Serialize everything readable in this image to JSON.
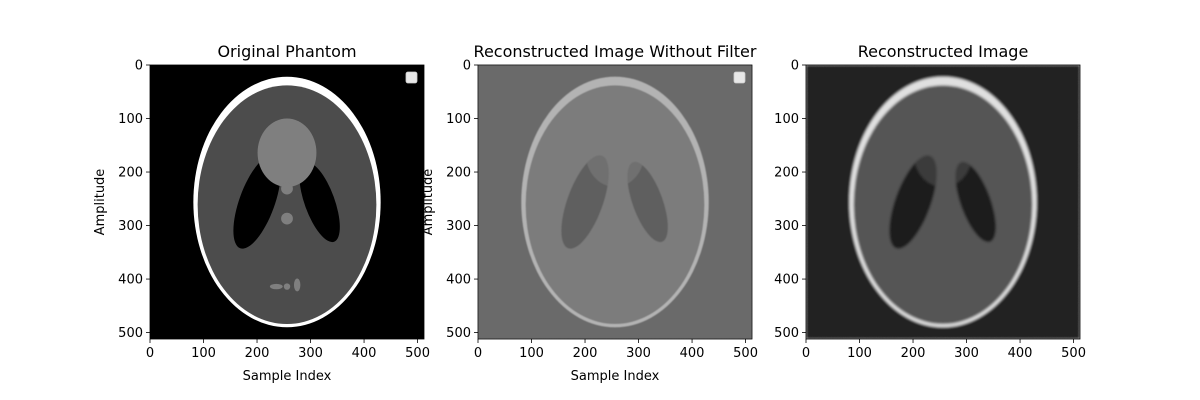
{
  "chart_data": [
    {
      "type": "heatmap",
      "title": "Original Phantom",
      "xlabel": "Sample Index",
      "ylabel": "Amplitude",
      "image_size": [
        512,
        512
      ],
      "xlim": [
        0,
        512
      ],
      "ylim": [
        512,
        0
      ],
      "xticks": [
        0,
        100,
        200,
        300,
        400,
        500
      ],
      "yticks": [
        0,
        100,
        200,
        300,
        400,
        500
      ],
      "colormap": "gray",
      "legend": "top-right, empty"
    },
    {
      "type": "heatmap",
      "title": "Reconstructed Image Without Filter",
      "xlabel": "Sample Index",
      "ylabel": "Amplitude",
      "image_size": [
        512,
        512
      ],
      "xlim": [
        0,
        512
      ],
      "ylim": [
        512,
        0
      ],
      "xticks": [
        0,
        100,
        200,
        300,
        400,
        500
      ],
      "yticks": [
        0,
        100,
        200,
        300,
        400,
        500
      ],
      "colormap": "gray",
      "legend": "top-right, empty"
    },
    {
      "type": "heatmap",
      "title": "Reconstructed Image",
      "xlabel": "",
      "ylabel": "",
      "image_size": [
        512,
        512
      ],
      "xlim": [
        0,
        512
      ],
      "ylim": [
        512,
        0
      ],
      "xticks": [
        0,
        100,
        200,
        300,
        400,
        500
      ],
      "yticks": [
        0,
        100,
        200,
        300,
        400,
        500
      ],
      "colormap": "gray"
    }
  ],
  "colors": {
    "phantom_background": "#000000",
    "phantom_skull": "#ffffff",
    "phantom_brain": "#4c4c4c",
    "phantom_ventricles": "#000000",
    "phantom_lesions": "#7f7f7f",
    "unfiltered_background": "#6a6a6a",
    "unfiltered_skull": "#b3b3b3",
    "unfiltered_brain": "#7c7c7c",
    "unfiltered_ventricles": "#5f5f5f",
    "filtered_background": "#222222",
    "filtered_skull": "#e0e0e0",
    "filtered_brain": "#555555",
    "filtered_ventricles": "#1c1c1c"
  }
}
